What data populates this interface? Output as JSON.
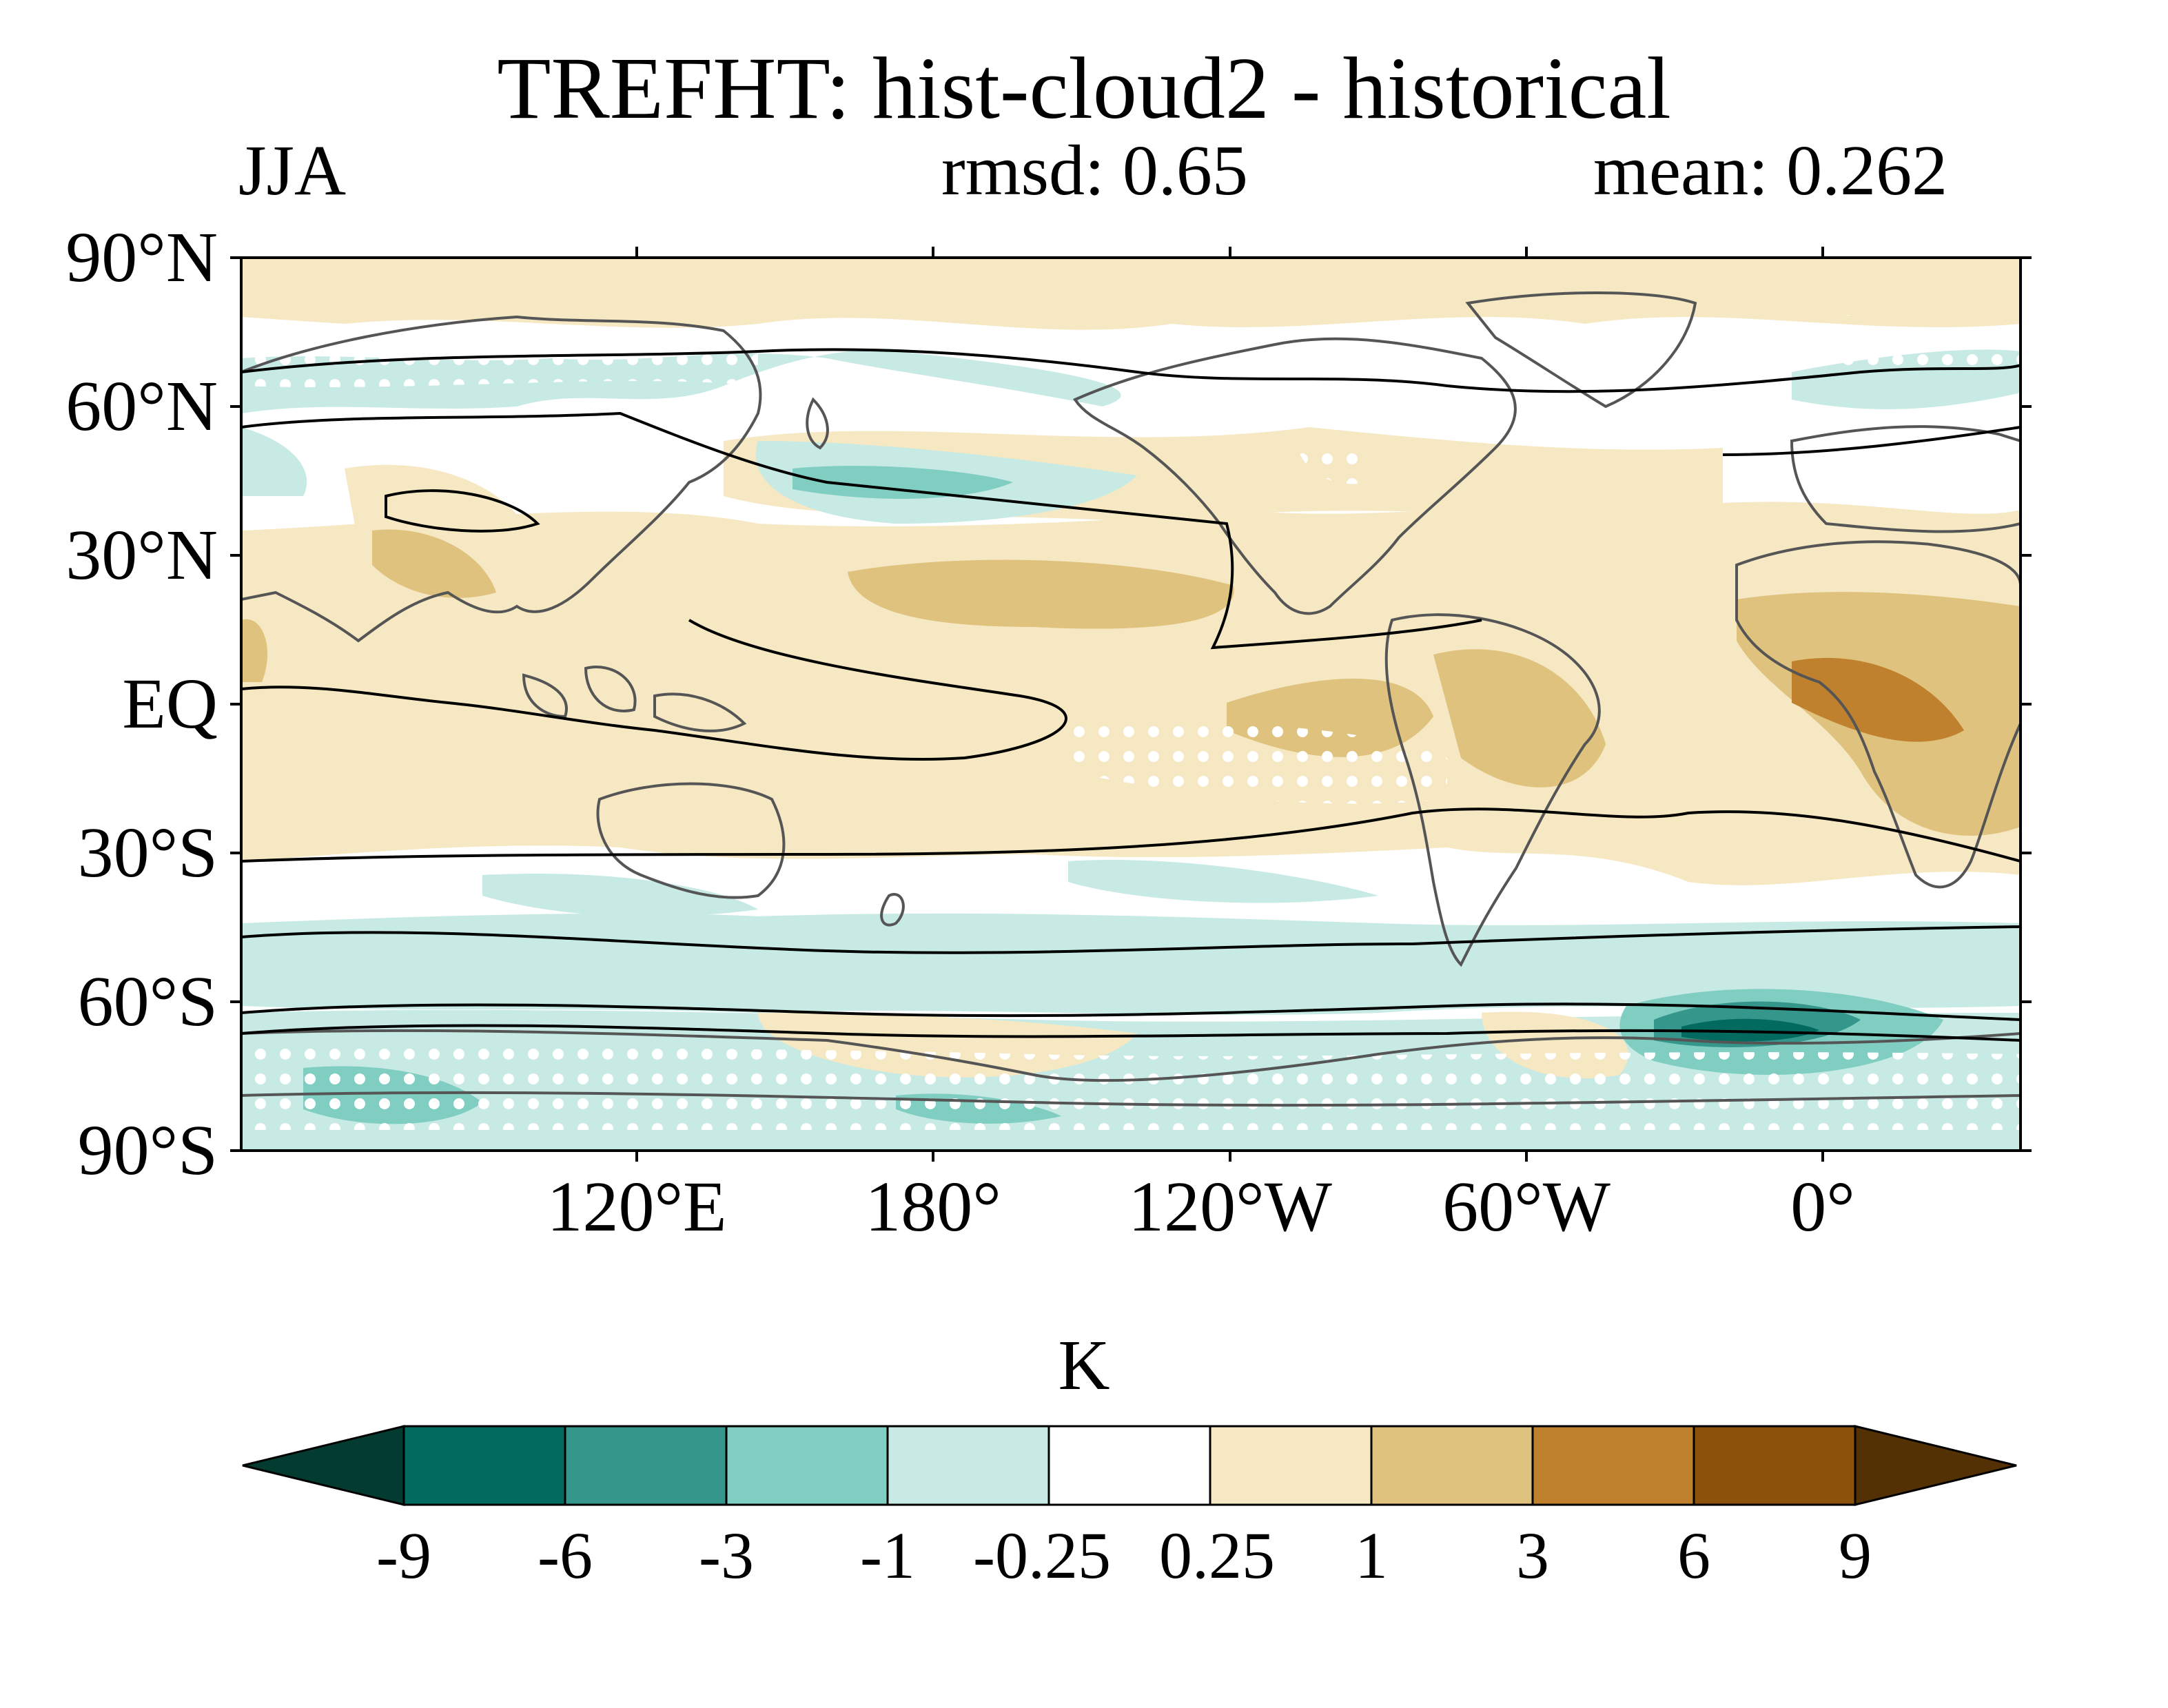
{
  "title": "TREFHT: hist-cloud2 - historical",
  "season": "JJA",
  "rmsd": "rmsd: 0.65",
  "mean": "mean: 0.262",
  "map": {
    "projection": "cylindrical-equidistant",
    "lon_range": [
      20,
      380
    ],
    "lat_range": [
      -90,
      90
    ],
    "lat_labels": [
      "90°N",
      "60°N",
      "30°N",
      "EQ",
      "30°S",
      "60°S",
      "90°S"
    ],
    "lon_labels": [
      "120°E",
      "180°",
      "120°W",
      "60°W",
      "0°"
    ],
    "stippling": "white dots mark non-significant areas",
    "colors": {
      "coastline": "#555555",
      "contour": "#000000"
    }
  },
  "colorbar": {
    "unit": "K",
    "levels": [
      "-9",
      "-6",
      "-3",
      "-1",
      "-0.25",
      "0.25",
      "1",
      "3",
      "6",
      "9"
    ],
    "colors": [
      "#033b31",
      "#036a60",
      "#35968c",
      "#80cdc1",
      "#c7eae5",
      "#ffffff",
      "#f6e8c3",
      "#dfc27d",
      "#bf812d",
      "#8c510a",
      "#543005"
    ]
  }
}
